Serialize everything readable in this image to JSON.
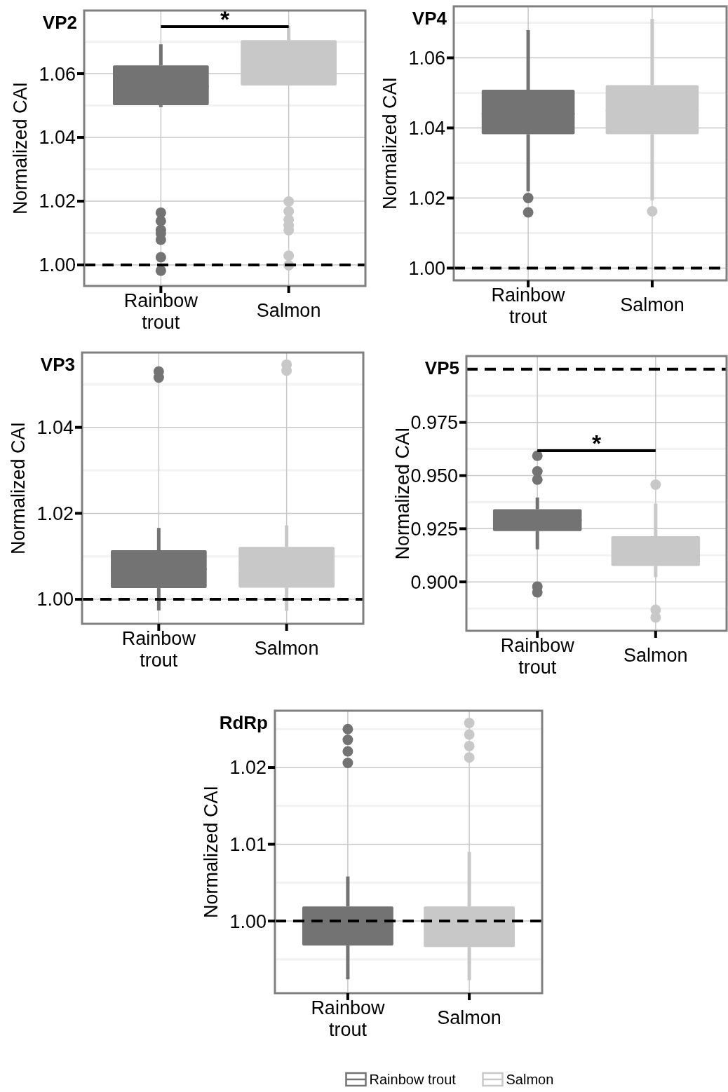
{
  "chart_data": [
    {
      "type": "box",
      "title": "VP2",
      "ylabel": "Normalized CAI",
      "categories": [
        "Rainbow trout",
        "Salmon"
      ],
      "ylim": [
        0.9934,
        1.0798
      ],
      "yticks": [
        {
          "value": 1.0,
          "label": "1.00"
        },
        1.02,
        1.04,
        1.06
      ],
      "grid": true,
      "ref_lines": [
        {
          "axis": "y",
          "value": 1.0,
          "color": "#000000",
          "line_style": "dashed"
        }
      ],
      "annotations": [
        "*"
      ],
      "series": [
        {
          "color": "#737373",
          "boxes": [
            {
              "low": 1.0495,
              "q1": 1.0501,
              "median": 1.056,
              "q3": 1.0626,
              "high": 1.0692,
              "outliers": [
                1.0164,
                1.0138,
                1.011,
                1.0099,
                1.0079,
                1.0024,
                0.9982
              ]
            },
            null
          ]
        },
        {
          "color": "#c8c8c8",
          "boxes": [
            null,
            {
              "low": 1.0563,
              "q1": 1.0563,
              "median": 1.063,
              "q3": 1.0705,
              "high": 1.075,
              "outliers": [
                1.0199,
                1.0168,
                1.0142,
                1.0124,
                1.0109,
                1.0029,
                0.9999
              ]
            }
          ]
        }
      ]
    },
    {
      "type": "box",
      "title": "VP4",
      "ylabel": "Normalized CAI",
      "categories": [
        "Rainbow trout",
        "Salmon"
      ],
      "ylim": [
        0.9965,
        1.0747
      ],
      "yticks": [
        {
          "value": 1.0,
          "label": "1.00"
        },
        1.02,
        1.04,
        1.06
      ],
      "grid": true,
      "ref_lines": [
        {
          "axis": "y",
          "value": 1.0,
          "color": "#000000",
          "line_style": "dashed"
        }
      ],
      "series": [
        {
          "color": "#737373",
          "boxes": [
            {
              "low": 1.0219,
              "q1": 1.0382,
              "median": 1.044,
              "q3": 1.0509,
              "high": 1.0679,
              "outliers": [
                1.02,
                1.0159
              ]
            },
            null
          ]
        },
        {
          "color": "#c8c8c8",
          "boxes": [
            null,
            {
              "low": 1.0193,
              "q1": 1.0382,
              "median": 1.045,
              "q3": 1.0522,
              "high": 1.0711,
              "outliers": [
                1.0162
              ]
            }
          ]
        }
      ]
    },
    {
      "type": "box",
      "title": "VP3",
      "ylabel": "Normalized CAI",
      "categories": [
        "Rainbow trout",
        "Salmon"
      ],
      "ylim": [
        0.9943,
        1.0574
      ],
      "yticks": [
        {
          "value": 1.0,
          "label": "1.00"
        },
        1.02,
        1.04
      ],
      "grid": true,
      "ref_lines": [
        {
          "axis": "y",
          "value": 1.0,
          "color": "#000000",
          "line_style": "dashed"
        }
      ],
      "series": [
        {
          "color": "#737373",
          "boxes": [
            {
              "low": 0.9974,
              "q1": 1.0026,
              "median": 1.007,
              "q3": 1.0114,
              "high": 1.0166,
              "outliers": [
                1.053,
                1.0516
              ]
            },
            null
          ]
        },
        {
          "color": "#c8c8c8",
          "boxes": [
            null,
            {
              "low": 0.9973,
              "q1": 1.0027,
              "median": 1.0075,
              "q3": 1.0122,
              "high": 1.0172,
              "outliers": [
                1.0546,
                1.0532
              ]
            }
          ]
        }
      ]
    },
    {
      "type": "box",
      "title": "VP5",
      "ylabel": "Normalized CAI",
      "categories": [
        "Rainbow trout",
        "Salmon"
      ],
      "ylim": [
        0.877,
        1.0062
      ],
      "yticks": [
        {
          "value": 0.9,
          "label": "0.900"
        },
        0.925,
        {
          "value": 0.95,
          "label": "0.950"
        },
        0.975
      ],
      "grid": true,
      "ref_lines": [
        {
          "axis": "y",
          "value": 1.0,
          "color": "#000000",
          "line_style": "dashed"
        }
      ],
      "annotations": [
        "*"
      ],
      "series": [
        {
          "color": "#737373",
          "boxes": [
            {
              "low": 0.9153,
              "q1": 0.9239,
              "median": 0.929,
              "q3": 0.9342,
              "high": 0.9397,
              "outliers": [
                0.9593,
                0.952,
                0.9481,
                0.8978,
                0.8951
              ]
            },
            null
          ]
        },
        {
          "color": "#c8c8c8",
          "boxes": [
            null,
            {
              "low": 0.9022,
              "q1": 0.9075,
              "median": 0.914,
              "q3": 0.9215,
              "high": 0.9368,
              "outliers": [
                0.9457,
                0.8869,
                0.8833
              ]
            }
          ]
        }
      ]
    },
    {
      "type": "box",
      "title": "RdRp",
      "ylabel": "Normalized CAI",
      "categories": [
        "Rainbow trout",
        "Salmon"
      ],
      "ylim": [
        0.9906,
        1.0274
      ],
      "yticks": [
        {
          "value": 1.0,
          "label": "1.00"
        },
        1.01,
        1.02
      ],
      "grid": true,
      "legend": "bottom",
      "ref_lines": [
        {
          "axis": "y",
          "value": 1.0,
          "color": "#000000",
          "line_style": "dashed"
        }
      ],
      "series": [
        {
          "name": "Rainbow trout",
          "color": "#737373",
          "boxes": [
            {
              "low": 0.9924,
              "q1": 0.9968,
              "median": 0.9994,
              "q3": 1.0019,
              "high": 1.0058,
              "outliers": [
                1.025,
                1.0236,
                1.0221,
                1.0206
              ]
            },
            null
          ]
        },
        {
          "name": "Salmon",
          "color": "#c8c8c8",
          "boxes": [
            null,
            {
              "low": 0.9923,
              "q1": 0.9966,
              "median": 0.9993,
              "q3": 1.0019,
              "high": 1.009,
              "outliers": [
                1.0258,
                1.0243,
                1.0228,
                1.0213
              ]
            }
          ]
        }
      ]
    }
  ]
}
